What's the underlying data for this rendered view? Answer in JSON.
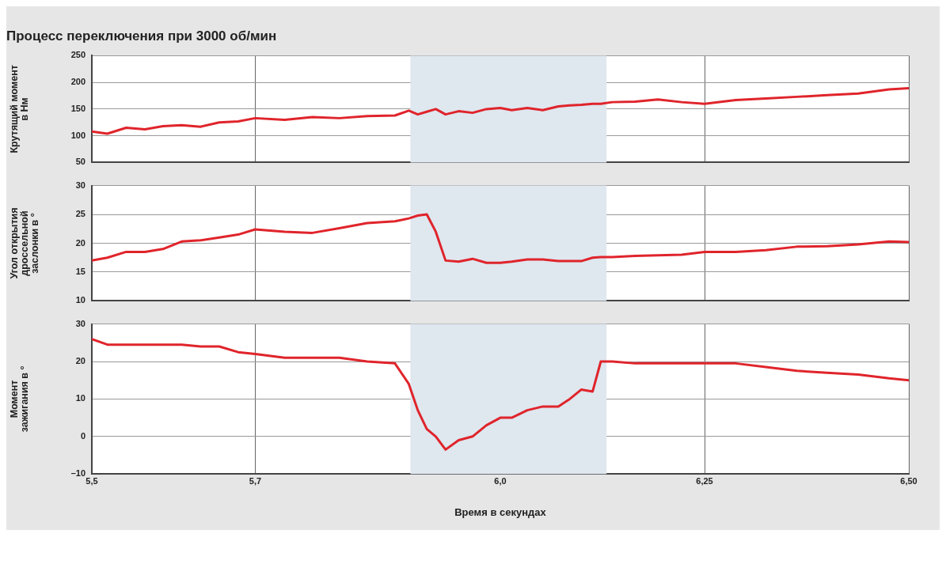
{
  "chart_data": [
    {
      "type": "line",
      "title": "Процесс переключения при 3000 об/мин",
      "ylabel": "Крутящий момент\nв Нм",
      "grid": true,
      "tick_labels": "y",
      "x": [
        5.5,
        5.519,
        5.542,
        5.565,
        5.587,
        5.61,
        5.633,
        5.656,
        5.679,
        5.7,
        5.736,
        5.77,
        5.803,
        5.837,
        5.871,
        5.888,
        5.899,
        5.91,
        5.921,
        5.933,
        5.949,
        5.966,
        5.983,
        6.0,
        6.014,
        6.033,
        6.052,
        6.071,
        6.085,
        6.099,
        6.113,
        6.123,
        6.137,
        6.165,
        6.193,
        6.222,
        6.25,
        6.288,
        6.325,
        6.363,
        6.4,
        6.438,
        6.476,
        6.5
      ],
      "series": [
        {
          "color": "#e0242b",
          "values": [
            108,
            104,
            115,
            112,
            118,
            120,
            117,
            125,
            127,
            133,
            130,
            135,
            133,
            137,
            138,
            147,
            140,
            145,
            150,
            140,
            146,
            143,
            150,
            152,
            148,
            152,
            148,
            155,
            157,
            158,
            160,
            160,
            163,
            164,
            168,
            163,
            160,
            167,
            170,
            173,
            176,
            179,
            187,
            189
          ]
        }
      ],
      "xlim": [
        5.5,
        6.5
      ],
      "xticks": [
        {
          "value": 5.5,
          "label": null
        },
        {
          "value": 5.7,
          "label": null
        },
        {
          "value": 6.0,
          "label": null
        },
        {
          "value": 6.25,
          "label": null
        },
        {
          "value": 6.5,
          "label": null
        }
      ],
      "ylim": [
        50,
        250
      ],
      "yticks": [
        50,
        100,
        150,
        200,
        250
      ],
      "bands": [
        {
          "axis": "x",
          "from": 5.89,
          "to": 6.13,
          "color": "#dfe7ef"
        }
      ]
    },
    {
      "type": "line",
      "ylabel": "Угол открытия\nдроссельной\nзаслонки в °",
      "grid": true,
      "tick_labels": "y",
      "x": [
        5.5,
        5.519,
        5.542,
        5.565,
        5.587,
        5.61,
        5.633,
        5.656,
        5.679,
        5.7,
        5.736,
        5.77,
        5.803,
        5.837,
        5.871,
        5.888,
        5.899,
        5.91,
        5.921,
        5.933,
        5.949,
        5.966,
        5.983,
        6.0,
        6.014,
        6.033,
        6.052,
        6.071,
        6.085,
        6.099,
        6.113,
        6.123,
        6.137,
        6.165,
        6.193,
        6.222,
        6.25,
        6.288,
        6.325,
        6.363,
        6.4,
        6.438,
        6.476,
        6.5
      ],
      "series": [
        {
          "color": "#e0242b",
          "values": [
            17,
            17.5,
            18.5,
            18.5,
            19,
            20.3,
            20.5,
            21,
            21.5,
            22.4,
            22,
            21.8,
            22.6,
            23.5,
            23.8,
            24.3,
            24.8,
            25,
            22,
            17,
            16.8,
            17.3,
            16.6,
            16.6,
            16.8,
            17.2,
            17.2,
            16.9,
            16.9,
            16.9,
            17.5,
            17.6,
            17.6,
            17.8,
            17.9,
            18,
            18.5,
            18.5,
            18.8,
            19.4,
            19.5,
            19.8,
            20.3,
            20.2
          ]
        }
      ],
      "xlim": [
        5.5,
        6.5
      ],
      "xticks": [
        {
          "value": 5.5,
          "label": null
        },
        {
          "value": 5.7,
          "label": null
        },
        {
          "value": 6.0,
          "label": null
        },
        {
          "value": 6.25,
          "label": null
        },
        {
          "value": 6.5,
          "label": null
        }
      ],
      "ylim": [
        10,
        30
      ],
      "yticks": [
        10,
        15,
        20,
        25,
        30
      ],
      "bands": [
        {
          "axis": "x",
          "from": 5.89,
          "to": 6.13,
          "color": "#dfe7ef"
        }
      ]
    },
    {
      "type": "line",
      "ylabel": "Момент\nзажигания в °",
      "xlabel": "Время в секундах",
      "grid": true,
      "x": [
        5.5,
        5.519,
        5.542,
        5.565,
        5.587,
        5.61,
        5.633,
        5.656,
        5.679,
        5.7,
        5.736,
        5.77,
        5.803,
        5.837,
        5.871,
        5.888,
        5.899,
        5.91,
        5.921,
        5.933,
        5.949,
        5.966,
        5.983,
        6.0,
        6.014,
        6.033,
        6.052,
        6.071,
        6.085,
        6.099,
        6.113,
        6.123,
        6.137,
        6.165,
        6.193,
        6.222,
        6.25,
        6.288,
        6.325,
        6.363,
        6.4,
        6.438,
        6.476,
        6.5
      ],
      "series": [
        {
          "color": "#e0242b",
          "values": [
            26,
            24.5,
            24.5,
            24.5,
            24.5,
            24.5,
            24,
            24,
            22.5,
            22,
            21,
            21,
            21,
            20,
            19.5,
            14,
            7,
            2,
            0,
            -3.5,
            -1,
            0,
            3,
            5,
            5,
            7,
            8,
            8,
            10,
            12.5,
            12,
            20,
            20,
            19.5,
            19.5,
            19.5,
            19.5,
            19.5,
            18.5,
            17.5,
            17,
            16.5,
            15.5,
            15
          ]
        }
      ],
      "xlim": [
        5.5,
        6.5
      ],
      "xticks": [
        {
          "value": 5.5,
          "label": "5,5"
        },
        {
          "value": 5.7,
          "label": "5,7"
        },
        {
          "value": 6.0,
          "label": "6,0"
        },
        {
          "value": 6.25,
          "label": "6,25"
        },
        {
          "value": 6.5,
          "label": "6,50"
        }
      ],
      "ylim": [
        -10,
        30
      ],
      "yticks": [
        {
          "value": -10,
          "label": "–10"
        },
        0,
        10,
        20,
        30
      ],
      "bands": [
        {
          "axis": "x",
          "from": 5.89,
          "to": 6.13,
          "color": "#dfe7ef"
        }
      ]
    }
  ]
}
